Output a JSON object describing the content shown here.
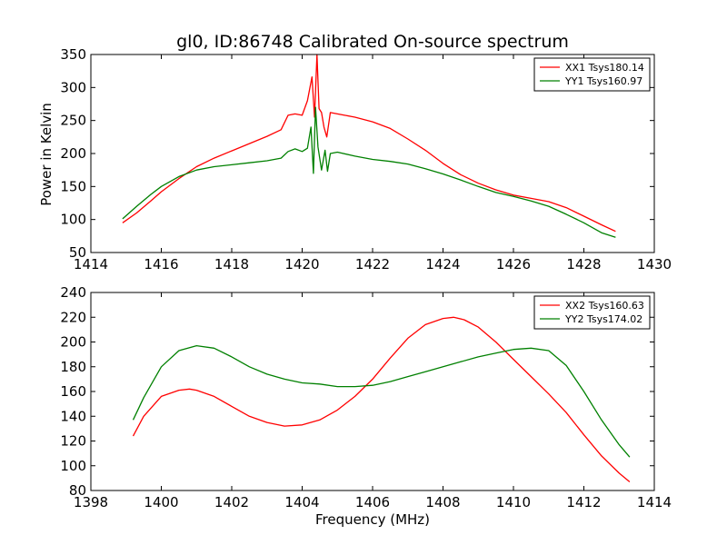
{
  "chart_data": [
    {
      "type": "line",
      "title": "gl0, ID:86748 Calibrated On-source spectrum",
      "xlabel": "",
      "ylabel": "Power in Kelvin",
      "xlim": [
        1414,
        1430
      ],
      "ylim": [
        50,
        350
      ],
      "xticks": [
        "1414",
        "1416",
        "1418",
        "1420",
        "1422",
        "1424",
        "1426",
        "1428",
        "1430"
      ],
      "yticks": [
        "50",
        "100",
        "150",
        "200",
        "250",
        "300",
        "350"
      ],
      "grid": false,
      "legend": "top-right",
      "series": [
        {
          "name": "XX1 Tsys180.14",
          "color": "#ff0000",
          "x": [
            1414.9,
            1415.3,
            1415.7,
            1416.0,
            1416.5,
            1417.0,
            1417.5,
            1418.0,
            1418.5,
            1419.0,
            1419.4,
            1419.6,
            1419.8,
            1420.0,
            1420.15,
            1420.28,
            1420.35,
            1420.42,
            1420.48,
            1420.55,
            1420.62,
            1420.7,
            1420.8,
            1421.0,
            1421.5,
            1422.0,
            1422.5,
            1423.0,
            1423.5,
            1424.0,
            1424.5,
            1425.0,
            1425.5,
            1426.0,
            1426.5,
            1427.0,
            1427.5,
            1428.0,
            1428.5,
            1428.9
          ],
          "y": [
            95,
            110,
            128,
            142,
            162,
            180,
            193,
            204,
            215,
            226,
            236,
            258,
            260,
            258,
            280,
            316,
            255,
            350,
            268,
            262,
            240,
            225,
            262,
            260,
            255,
            248,
            238,
            222,
            205,
            185,
            168,
            155,
            145,
            137,
            132,
            127,
            118,
            105,
            92,
            82
          ]
        },
        {
          "name": "YY1 Tsys160.97",
          "color": "#008000",
          "x": [
            1414.9,
            1415.3,
            1415.7,
            1416.0,
            1416.5,
            1417.0,
            1417.5,
            1418.0,
            1418.5,
            1419.0,
            1419.4,
            1419.6,
            1419.8,
            1420.0,
            1420.15,
            1420.25,
            1420.32,
            1420.38,
            1420.45,
            1420.55,
            1420.65,
            1420.72,
            1420.8,
            1421.0,
            1421.5,
            1422.0,
            1422.5,
            1423.0,
            1423.5,
            1424.0,
            1424.5,
            1425.0,
            1425.5,
            1426.0,
            1426.5,
            1427.0,
            1427.5,
            1428.0,
            1428.5,
            1428.9
          ],
          "y": [
            101,
            120,
            138,
            150,
            165,
            175,
            180,
            183,
            186,
            189,
            193,
            203,
            207,
            203,
            208,
            240,
            170,
            270,
            210,
            175,
            205,
            173,
            200,
            202,
            196,
            191,
            188,
            184,
            177,
            169,
            160,
            150,
            141,
            135,
            128,
            120,
            108,
            95,
            80,
            73
          ]
        }
      ]
    },
    {
      "type": "line",
      "title": "",
      "xlabel": "Frequency (MHz)",
      "ylabel": "",
      "xlim": [
        1398,
        1414
      ],
      "ylim": [
        80,
        240
      ],
      "xticks": [
        "1398",
        "1400",
        "1402",
        "1404",
        "1406",
        "1408",
        "1410",
        "1412",
        "1414"
      ],
      "yticks": [
        "80",
        "100",
        "120",
        "140",
        "160",
        "180",
        "200",
        "220",
        "240"
      ],
      "grid": false,
      "legend": "top-right",
      "series": [
        {
          "name": "XX2 Tsys160.63",
          "color": "#ff0000",
          "x": [
            1399.2,
            1399.5,
            1400.0,
            1400.5,
            1400.8,
            1401.0,
            1401.5,
            1402.0,
            1402.5,
            1403.0,
            1403.5,
            1404.0,
            1404.5,
            1405.0,
            1405.5,
            1406.0,
            1406.5,
            1407.0,
            1407.5,
            1408.0,
            1408.3,
            1408.6,
            1409.0,
            1409.5,
            1410.0,
            1410.5,
            1411.0,
            1411.5,
            1412.0,
            1412.5,
            1413.0,
            1413.3
          ],
          "y": [
            124,
            140,
            156,
            161,
            162,
            161,
            156,
            148,
            140,
            135,
            132,
            133,
            137,
            145,
            156,
            170,
            187,
            203,
            214,
            219,
            220,
            218,
            212,
            200,
            186,
            172,
            158,
            143,
            125,
            108,
            94,
            87
          ]
        },
        {
          "name": "YY2 Tsys174.02",
          "color": "#008000",
          "x": [
            1399.2,
            1399.5,
            1400.0,
            1400.5,
            1401.0,
            1401.5,
            1402.0,
            1402.5,
            1403.0,
            1403.5,
            1404.0,
            1404.5,
            1405.0,
            1405.5,
            1406.0,
            1406.5,
            1407.0,
            1407.5,
            1408.0,
            1408.5,
            1409.0,
            1409.5,
            1410.0,
            1410.5,
            1411.0,
            1411.5,
            1412.0,
            1412.5,
            1413.0,
            1413.3
          ],
          "y": [
            137,
            155,
            180,
            193,
            197,
            195,
            188,
            180,
            174,
            170,
            167,
            166,
            164,
            164,
            165,
            168,
            172,
            176,
            180,
            184,
            188,
            191,
            194,
            195,
            193,
            181,
            160,
            137,
            117,
            107
          ]
        }
      ]
    }
  ]
}
